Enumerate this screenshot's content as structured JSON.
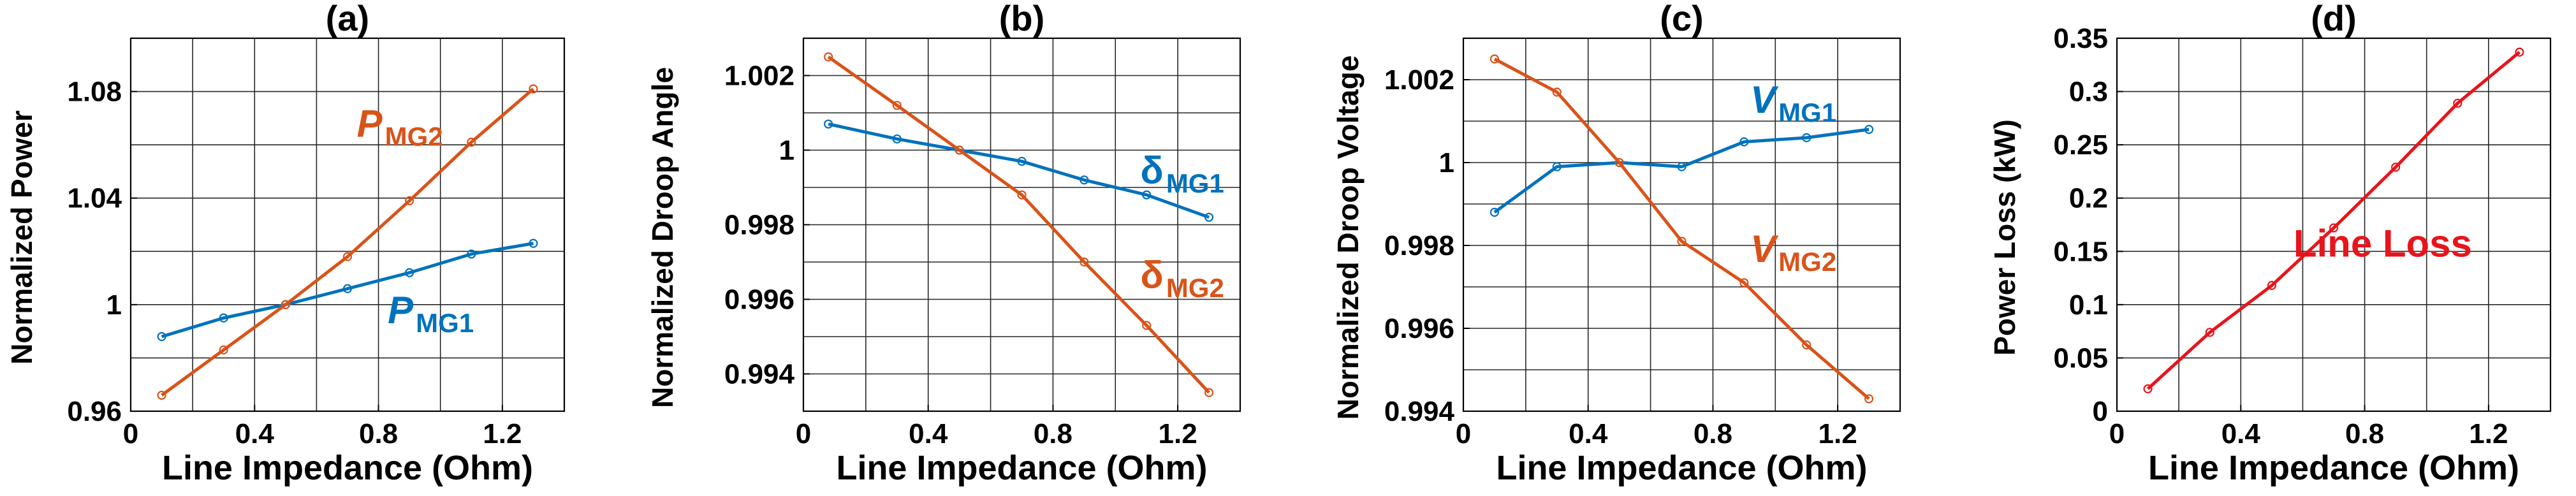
{
  "colors": {
    "blue": "#0072BD",
    "orange": "#D95319",
    "red": "#E8141B"
  },
  "chart_data": [
    {
      "panel": "(a)",
      "type": "line",
      "title": "(a)",
      "xlabel": "Line Impedance (Ohm)",
      "ylabel": "Normalized Power",
      "xlim": [
        0,
        1.4
      ],
      "ylim": [
        0.96,
        1.1
      ],
      "xticks": [
        0,
        0.4,
        0.8,
        1.2
      ],
      "xtick_labels": [
        "0",
        "0.4",
        "0.8",
        "1.2"
      ],
      "yticks": [
        0.96,
        1,
        1.04,
        1.08
      ],
      "ytick_labels": [
        "0.96",
        "1",
        "1.04",
        "1.08"
      ],
      "xgrid": [
        0.2,
        0.4,
        0.6,
        0.8,
        1.0,
        1.2
      ],
      "ygrid": [
        0.98,
        1,
        1.02,
        1.04,
        1.06,
        1.08
      ],
      "series": [
        {
          "name": "P_MG1",
          "color": "blue",
          "x": [
            0.1,
            0.3,
            0.5,
            0.7,
            0.9,
            1.1,
            1.3
          ],
          "values": [
            0.988,
            0.995,
            1.0,
            1.006,
            1.012,
            1.019,
            1.023
          ]
        },
        {
          "name": "P_MG2",
          "color": "orange",
          "x": [
            0.1,
            0.3,
            0.5,
            0.7,
            0.9,
            1.1,
            1.3
          ],
          "values": [
            0.966,
            0.983,
            1.0,
            1.018,
            1.039,
            1.061,
            1.081
          ]
        }
      ],
      "annotations": [
        {
          "base": "P",
          "sub": "MG2",
          "color": "orange",
          "italic": true,
          "x": 0.73,
          "y": 1.063
        },
        {
          "base": "P",
          "sub": "MG1",
          "color": "blue",
          "italic": true,
          "x": 0.83,
          "y": 0.993
        }
      ]
    },
    {
      "panel": "(b)",
      "type": "line",
      "title": "(b)",
      "xlabel": "Line Impedance (Ohm)",
      "ylabel": "Normalized Droop Angle",
      "xlim": [
        0,
        1.4
      ],
      "ylim": [
        0.993,
        1.003
      ],
      "xticks": [
        0,
        0.4,
        0.8,
        1.2
      ],
      "xtick_labels": [
        "0",
        "0.4",
        "0.8",
        "1.2"
      ],
      "yticks": [
        0.994,
        0.996,
        0.998,
        1,
        1.002
      ],
      "ytick_labels": [
        "0.994",
        "0.996",
        "0.998",
        "1",
        "1.002"
      ],
      "xgrid": [
        0.2,
        0.4,
        0.6,
        0.8,
        1.0,
        1.2
      ],
      "ygrid": [
        0.994,
        0.995,
        0.996,
        0.997,
        0.998,
        0.999,
        1,
        1.001,
        1.002
      ],
      "series": [
        {
          "name": "δ_MG1",
          "color": "blue",
          "x": [
            0.08,
            0.3,
            0.5,
            0.7,
            0.9,
            1.1,
            1.3
          ],
          "values": [
            1.0007,
            1.0003,
            1.0,
            0.9997,
            0.9992,
            0.9988,
            0.9982
          ]
        },
        {
          "name": "δ_MG2",
          "color": "orange",
          "x": [
            0.08,
            0.3,
            0.5,
            0.7,
            0.9,
            1.1,
            1.3
          ],
          "values": [
            1.0025,
            1.0012,
            1.0,
            0.9988,
            0.997,
            0.9953,
            0.9935
          ]
        }
      ],
      "annotations": [
        {
          "base": "δ",
          "sub": "MG1",
          "color": "blue",
          "italic": false,
          "x": 1.08,
          "y": 0.9991
        },
        {
          "base": "δ",
          "sub": "MG2",
          "color": "orange",
          "italic": false,
          "x": 1.08,
          "y": 0.9963
        }
      ]
    },
    {
      "panel": "(c)",
      "type": "line",
      "title": "(c)",
      "xlabel": "Line Impedance (Ohm)",
      "ylabel": "Normalized Droop Voltage",
      "xlim": [
        0,
        1.4
      ],
      "ylim": [
        0.994,
        1.003
      ],
      "xticks": [
        0,
        0.4,
        0.8,
        1.2
      ],
      "xtick_labels": [
        "0",
        "0.4",
        "0.8",
        "1.2"
      ],
      "yticks": [
        0.994,
        0.996,
        0.998,
        1,
        1.002
      ],
      "ytick_labels": [
        "0.994",
        "0.996",
        "0.998",
        "1",
        "1.002"
      ],
      "xgrid": [
        0.2,
        0.4,
        0.6,
        0.8,
        1.0,
        1.2
      ],
      "ygrid": [
        0.995,
        0.996,
        0.997,
        0.998,
        0.999,
        1,
        1.001,
        1.002
      ],
      "series": [
        {
          "name": "V_MG1",
          "color": "blue",
          "x": [
            0.1,
            0.3,
            0.5,
            0.7,
            0.9,
            1.1,
            1.3
          ],
          "values": [
            0.9988,
            0.9999,
            1.0,
            0.9999,
            1.0005,
            1.0006,
            1.0008
          ]
        },
        {
          "name": "V_MG2",
          "color": "orange",
          "x": [
            0.1,
            0.3,
            0.5,
            0.7,
            0.9,
            1.1,
            1.3
          ],
          "values": [
            1.0025,
            1.0017,
            1.0,
            0.9981,
            0.9971,
            0.9956,
            0.9943
          ]
        }
      ],
      "annotations": [
        {
          "base": "V",
          "sub": "MG1",
          "color": "blue",
          "italic": true,
          "x": 0.92,
          "y": 1.0012
        },
        {
          "base": "V",
          "sub": "MG2",
          "color": "orange",
          "italic": true,
          "x": 0.92,
          "y": 0.9976
        }
      ]
    },
    {
      "panel": "(d)",
      "type": "line",
      "title": "(d)",
      "xlabel": "Line Impedance (Ohm)",
      "ylabel": "Power Loss (kW)",
      "xlim": [
        0,
        1.4
      ],
      "ylim": [
        0,
        0.35
      ],
      "xticks": [
        0,
        0.4,
        0.8,
        1.2
      ],
      "xtick_labels": [
        "0",
        "0.4",
        "0.8",
        "1.2"
      ],
      "yticks": [
        0,
        0.05,
        0.1,
        0.15,
        0.2,
        0.25,
        0.3,
        0.35
      ],
      "ytick_labels": [
        "0",
        "0.05",
        "0.1",
        "0.15",
        "0.2",
        "0.25",
        "0.3",
        "0.35"
      ],
      "xgrid": [
        0.2,
        0.4,
        0.6,
        0.8,
        1.0,
        1.2
      ],
      "ygrid": [
        0.05,
        0.1,
        0.15,
        0.2,
        0.25,
        0.3
      ],
      "series": [
        {
          "name": "Line Loss",
          "color": "red",
          "x": [
            0.1,
            0.3,
            0.5,
            0.7,
            0.9,
            1.1,
            1.3
          ],
          "values": [
            0.021,
            0.074,
            0.118,
            0.172,
            0.229,
            0.289,
            0.337
          ]
        }
      ],
      "annotations": [
        {
          "base": "Line Loss",
          "sub": "",
          "color": "red",
          "italic": false,
          "x": 0.57,
          "y": 0.145
        }
      ]
    }
  ]
}
